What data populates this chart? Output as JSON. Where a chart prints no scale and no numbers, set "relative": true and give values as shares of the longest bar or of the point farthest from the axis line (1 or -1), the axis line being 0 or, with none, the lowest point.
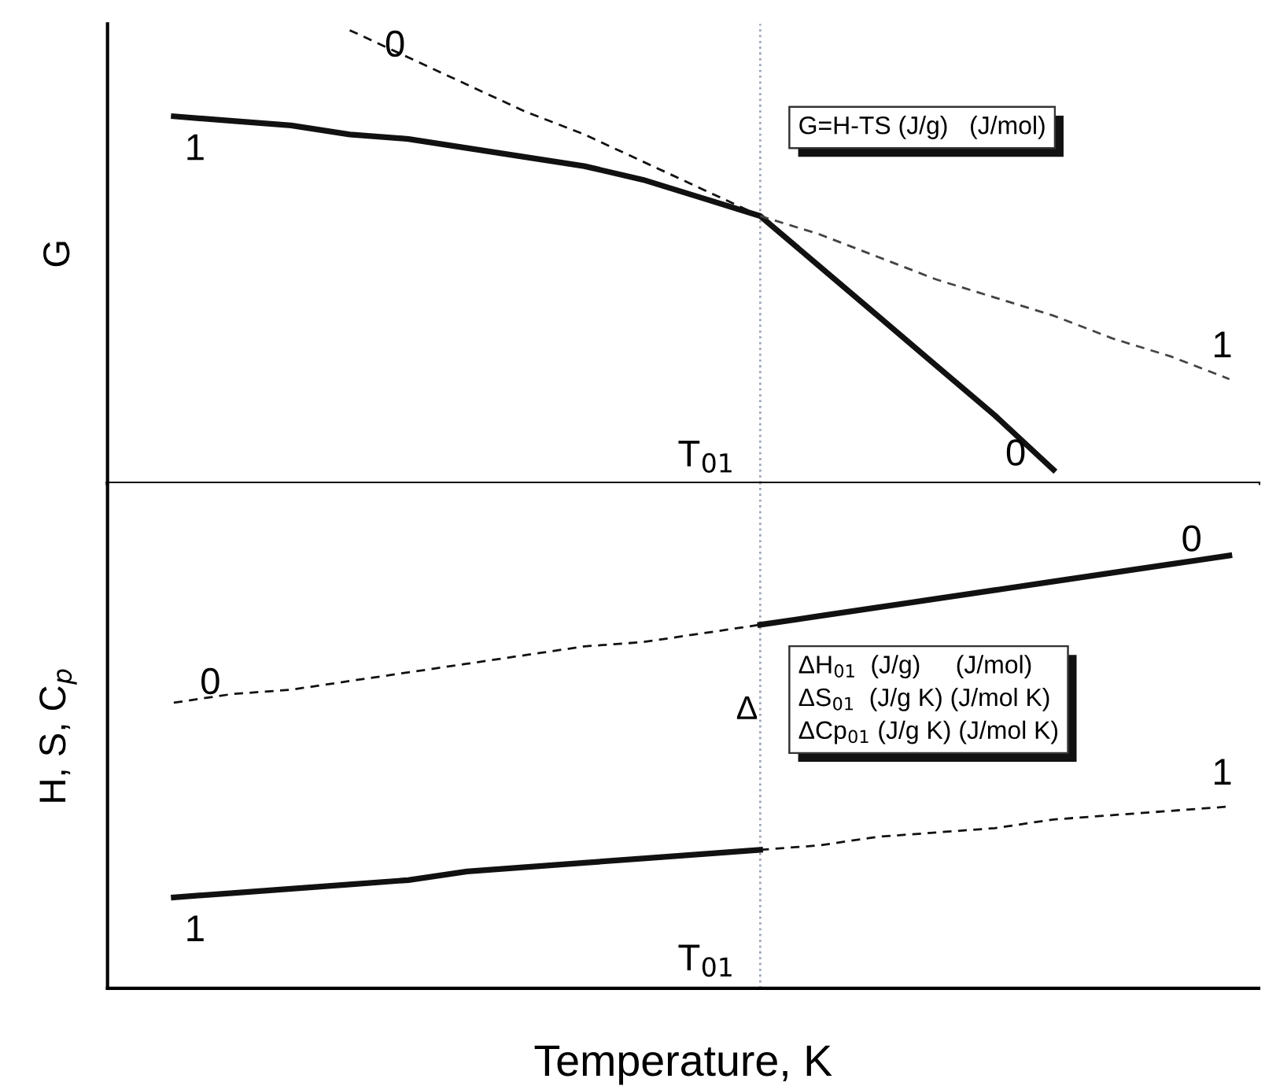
{
  "chart_data": [
    {
      "type": "line",
      "ylabel": "G",
      "relative": true,
      "grid": false,
      "categories": [
        null,
        null,
        null,
        null,
        null,
        null,
        null,
        null,
        null,
        null,
        null,
        null,
        null,
        null,
        null,
        null,
        null,
        null,
        null
      ],
      "series": [
        {
          "color": "#111111",
          "line_style": "solid",
          "values": [
            0.81,
            0.8,
            0.79,
            0.77,
            0.76,
            0.74,
            0.72,
            0.7,
            0.67,
            0.63,
            0.59,
            0.48,
            0.37,
            0.26,
            0.15,
            0.03,
            null,
            null,
            null
          ]
        },
        {
          "name": "0",
          "color": "#111111",
          "line_style": "dashed",
          "values": [
            null,
            null,
            null,
            1.0,
            0.94,
            0.88,
            0.82,
            0.77,
            0.71,
            0.65,
            0.59,
            null,
            null,
            null,
            null,
            null,
            null,
            null,
            null
          ]
        },
        {
          "name": "1",
          "color": "#444444",
          "line_style": "dashed",
          "values": [
            null,
            null,
            null,
            null,
            null,
            null,
            null,
            null,
            null,
            null,
            0.59,
            0.55,
            0.5,
            0.45,
            0.41,
            0.37,
            0.32,
            0.28,
            0.23
          ]
        }
      ],
      "annotations": [
        "G=H-TS (J/g)   (J/mol)",
        "T$_{01}$",
        "1",
        "0"
      ]
    },
    {
      "type": "line",
      "ylabel": "H, S, C$_{p}$",
      "xlabel": "Temperature, K",
      "relative": true,
      "grid": false,
      "categories": [
        null,
        null,
        null,
        null,
        null,
        null,
        null,
        null,
        null,
        null,
        null,
        null,
        null,
        null,
        null,
        null,
        null,
        null,
        null
      ],
      "series": [
        {
          "name": "0",
          "color": "#111111",
          "line_style": "dashed",
          "values": [
            0.66,
            0.68,
            0.69,
            0.71,
            0.73,
            0.75,
            0.77,
            0.79,
            0.8,
            0.82,
            0.84,
            null,
            null,
            null,
            null,
            null,
            null,
            null,
            null
          ]
        },
        {
          "name": "0",
          "color": "#111111",
          "line_style": "solid",
          "values": [
            null,
            null,
            null,
            null,
            null,
            null,
            null,
            null,
            null,
            null,
            0.84,
            0.86,
            0.88,
            0.9,
            0.92,
            0.94,
            0.96,
            0.98,
            1.0
          ]
        },
        {
          "name": "1",
          "color": "#111111",
          "line_style": "solid",
          "values": [
            0.21,
            0.22,
            0.23,
            0.24,
            0.25,
            0.27,
            0.28,
            0.29,
            0.3,
            0.31,
            0.32,
            null,
            null,
            null,
            null,
            null,
            null,
            null,
            null
          ]
        },
        {
          "name": "1",
          "color": "#111111",
          "line_style": "dashed",
          "values": [
            null,
            null,
            null,
            null,
            null,
            null,
            null,
            null,
            null,
            null,
            0.32,
            0.33,
            0.35,
            0.36,
            0.37,
            0.39,
            0.4,
            0.41,
            0.42
          ]
        }
      ],
      "annotations": [
        "ΔH$_{01}$  (J/g)     (J/mol)\nΔS$_{01}$  (J/g K) (J/mol K)\nΔCp$_{01}$ (J/g K) (J/mol K)",
        "Δ",
        "T$_{01}$"
      ]
    }
  ]
}
